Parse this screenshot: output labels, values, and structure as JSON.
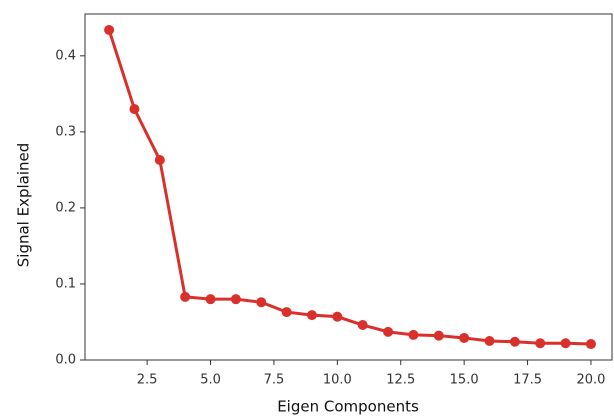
{
  "chart_data": {
    "type": "line",
    "x_label": "Eigen Components",
    "y_label": "Signal Explained",
    "x": [
      1,
      2,
      3,
      4,
      5,
      6,
      7,
      8,
      9,
      10,
      11,
      12,
      13,
      14,
      15,
      16,
      17,
      18,
      19,
      20
    ],
    "series": [
      {
        "color": "#d9302c",
        "values": [
          0.434,
          0.33,
          0.263,
          0.083,
          0.08,
          0.08,
          0.076,
          0.063,
          0.059,
          0.057,
          0.046,
          0.037,
          0.033,
          0.032,
          0.029,
          0.025,
          0.024,
          0.022,
          0.022,
          0.021
        ]
      }
    ],
    "xlim": [
      0.05,
      20.83
    ],
    "ylim": [
      0,
      0.455
    ],
    "xticks": [
      2.5,
      {
        "value": 5,
        "label": "5.0"
      },
      7.5,
      {
        "value": 10,
        "label": "10.0"
      },
      12.5,
      {
        "value": 15,
        "label": "15.0"
      },
      17.5,
      {
        "value": 20,
        "label": "20.0"
      }
    ],
    "yticks": [
      {
        "value": 0,
        "label": "0.0"
      },
      0.1,
      0.2,
      0.3,
      0.4
    ],
    "grid": false,
    "markers": true
  }
}
